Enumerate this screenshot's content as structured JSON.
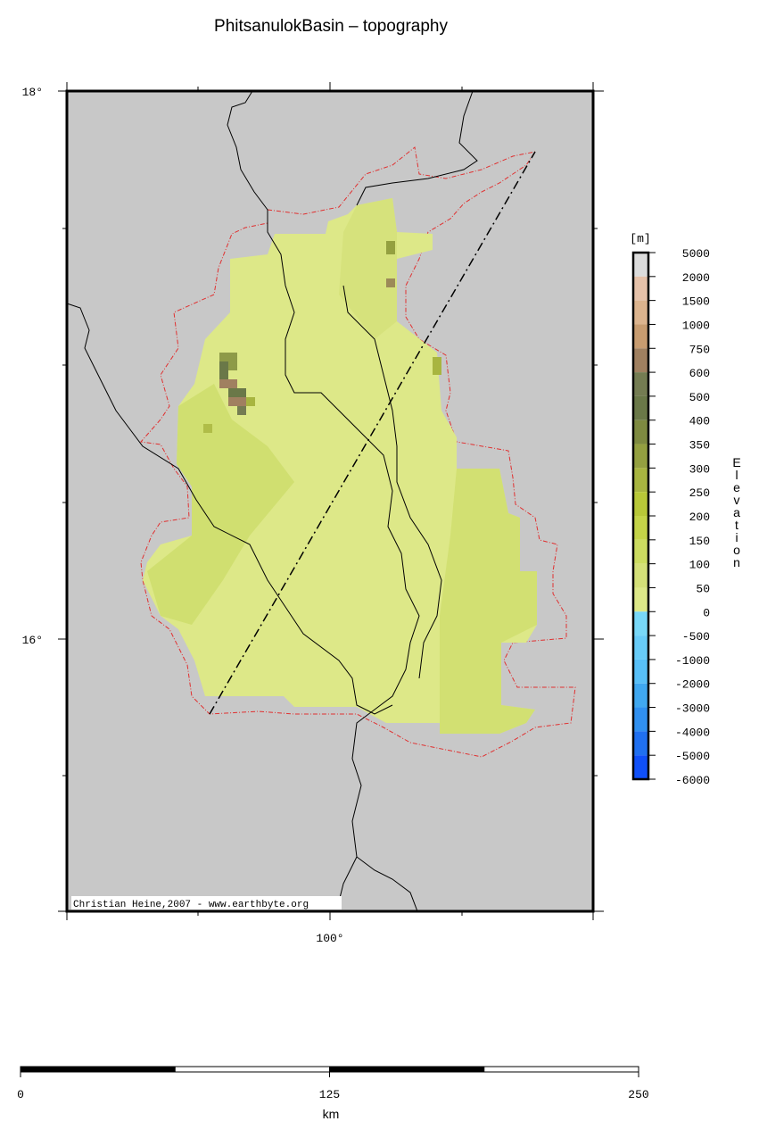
{
  "header": {
    "title": "PhitsanulokBasin – topography"
  },
  "map": {
    "lat_labels": [
      "18°",
      "16°"
    ],
    "lon_labels": [
      "100°"
    ],
    "credit": "Christian Heine,2007 - www.earthbyte.org"
  },
  "colorbar": {
    "unit": "[m]",
    "title": "Elevation",
    "ticks": [
      5000,
      2000,
      1500,
      1000,
      750,
      600,
      500,
      400,
      350,
      300,
      250,
      200,
      150,
      100,
      50,
      0,
      -500,
      -1000,
      -2000,
      -3000,
      -4000,
      -5000,
      -6000
    ],
    "colors": [
      "#dcdcdc",
      "#e6c2aa",
      "#dcb48e",
      "#c89c70",
      "#a08060",
      "#747c52",
      "#6a7848",
      "#7e8a40",
      "#94a040",
      "#a8b540",
      "#b8c838",
      "#c4d448",
      "#ccdc60",
      "#d4e078",
      "#dde888",
      "#78d8f8",
      "#68ccf8",
      "#58c0f8",
      "#40a8f0",
      "#3090f0",
      "#2070f0",
      "#1050f8"
    ]
  },
  "scale": {
    "ticks": [
      0,
      125,
      250
    ],
    "unit": "km"
  }
}
